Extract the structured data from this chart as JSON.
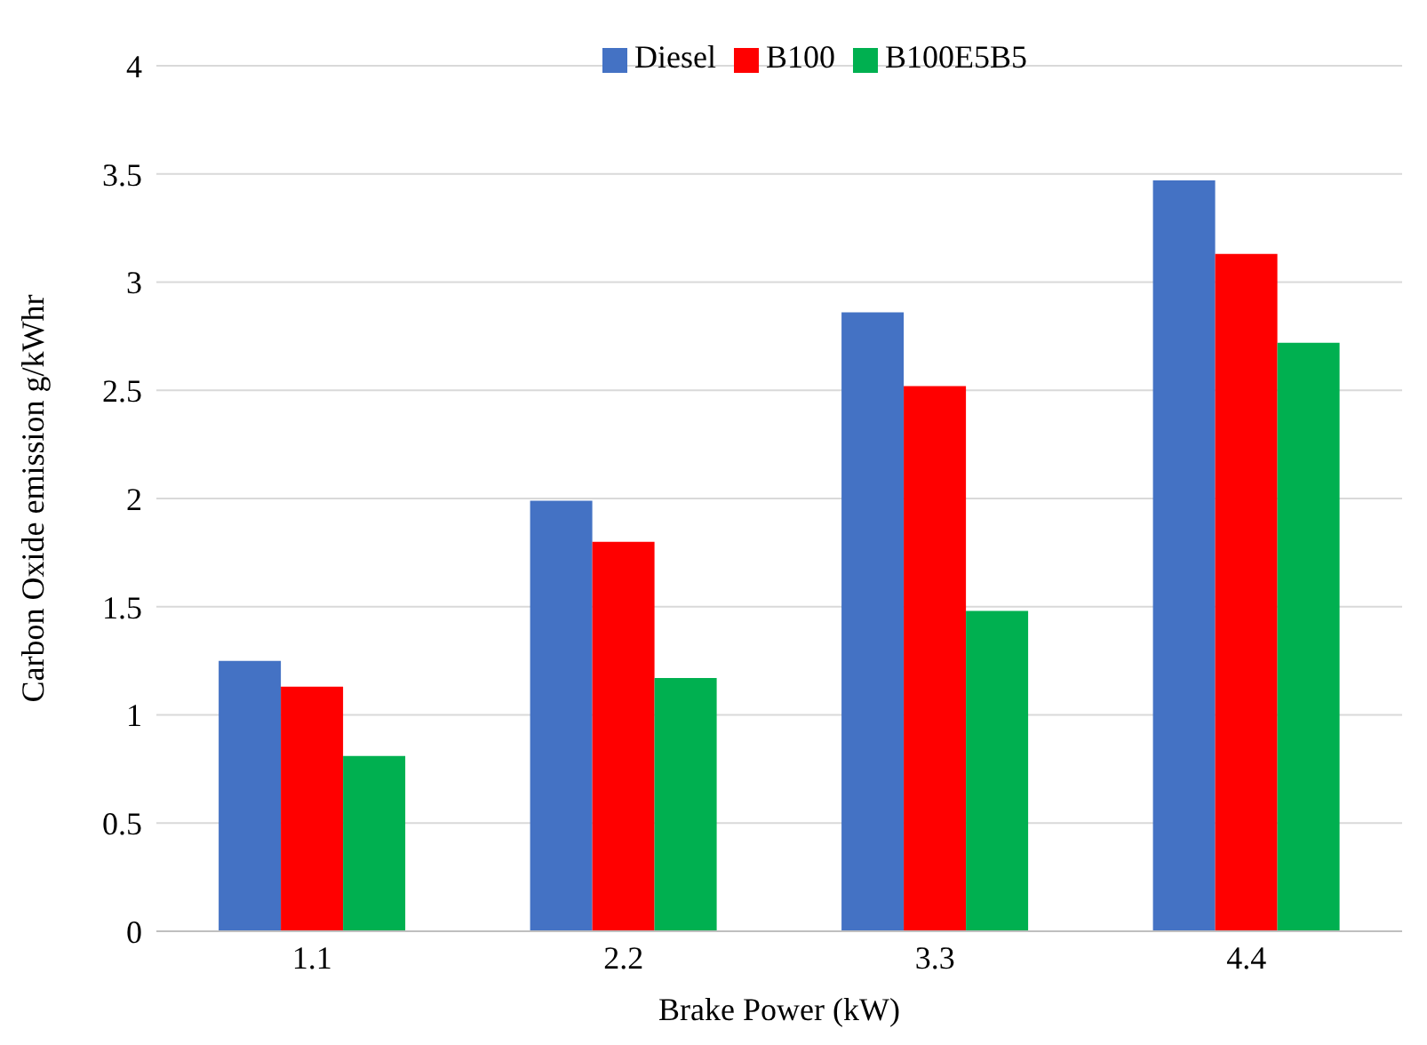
{
  "chart_data": {
    "type": "bar",
    "xlabel": "Brake Power (kW)",
    "ylabel": "Carbon Oxide emission g/kWhr",
    "categories": [
      "1.1",
      "2.2",
      "3.3",
      "4.4"
    ],
    "series": [
      {
        "name": "Diesel",
        "color": "#4472c4",
        "values": [
          1.25,
          1.99,
          2.86,
          3.47
        ]
      },
      {
        "name": "B100",
        "color": "#ff0000",
        "values": [
          1.13,
          1.8,
          2.52,
          3.13
        ]
      },
      {
        "name": "B100E5B5",
        "color": "#00b050",
        "values": [
          0.81,
          1.17,
          1.48,
          2.72
        ]
      }
    ],
    "ylim": [
      0,
      4
    ],
    "yticks": [
      0,
      0.5,
      1,
      1.5,
      2,
      2.5,
      3,
      3.5,
      4
    ],
    "grid": "y",
    "legend": "top"
  }
}
